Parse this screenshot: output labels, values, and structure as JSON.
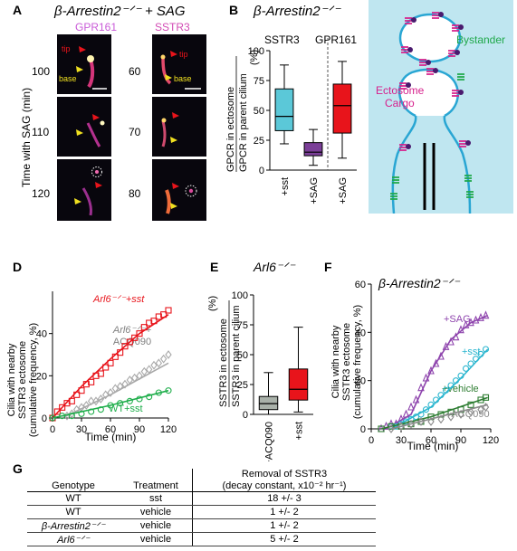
{
  "panels": {
    "A": {
      "label": "A",
      "title": "β-Arrestin2⁻ᐟ⁻ + SAG",
      "ylabel": "Time with SAG (min)",
      "col1_header": "GPR161",
      "col2_header": "SSTR3",
      "col1_times": [
        "100",
        "110",
        "120"
      ],
      "col2_times": [
        "60",
        "70",
        "80"
      ],
      "tip_label": "tip",
      "base_label": "base"
    },
    "B": {
      "label": "B",
      "title": "β-Arrestin2⁻ᐟ⁻",
      "group1": "SSTR3",
      "group2": "GPR161",
      "ylabel_num": "GPCR in ectosome",
      "ylabel_den": "GPCR in parent cilium",
      "ylabel_unit": "(%)"
    },
    "C": {
      "label": "C",
      "bystander": "Bystander",
      "cargo_line1": "Ectosome",
      "cargo_line2": "Cargo"
    },
    "D": {
      "label": "D",
      "ylabel1": "Cilia with nearby",
      "ylabel2": "SSTR3 ectosome",
      "ylabel3": "(cumulative frequency, %)",
      "xlabel": "Time (min)",
      "series_labels": [
        "Arl6⁻ᐟ⁻+sst",
        "Arl6⁻ᐟ⁻+",
        "ACQ090",
        "WT+sst"
      ]
    },
    "E": {
      "label": "E",
      "title": "Arl6⁻ᐟ⁻",
      "ylabel1": "SSTR3 in ectosome",
      "ylabel2": "SSTR3 in parent cilium",
      "ylabel_unit": "(%)"
    },
    "F": {
      "label": "F",
      "title": "β-Arrestin2⁻ᐟ⁻",
      "ylabel1": "Cilia with nearby",
      "ylabel2": "SSTR3 ectosome",
      "ylabel3": "(cumulative frequency, %)",
      "xlabel": "Time (min)",
      "series_labels": [
        "+SAG",
        "+sst",
        "+vehicle",
        "+ACQ090"
      ]
    },
    "G": {
      "label": "G",
      "headers": {
        "genotype": "Genotype",
        "treatment": "Treatment",
        "removal_line1": "Removal of SSTR3",
        "removal_line2": "(decay constant, x10⁻² hr⁻¹)"
      },
      "rows": [
        {
          "genotype": "WT",
          "treatment": "sst",
          "value": "18 +/- 3"
        },
        {
          "genotype": "WT",
          "treatment": "vehicle",
          "value": "1 +/- 2"
        },
        {
          "genotype": "β-Arrestin2⁻ᐟ⁻",
          "treatment": "vehicle",
          "value": "1 +/- 2"
        },
        {
          "genotype": "Arl6⁻ᐟ⁻",
          "treatment": "vehicle",
          "value": "5 +/- 2"
        }
      ]
    }
  },
  "colors": {
    "sstr3_box": "#5bc8d8",
    "sst_sag_box": "#7b3f98",
    "gpr161_box": "#e8141b",
    "arl6_sst": "#e8141b",
    "arl6_acq": "#a9a9a9",
    "wt_sst": "#1fae4b",
    "sag_purple": "#8e44ad",
    "sst_cyan": "#2bb6cf",
    "vehicle_green": "#2e7d32",
    "acq_grey": "#8a8a8a",
    "cell_bg": "#bfe6f0",
    "cilium_blue": "#29a6d3",
    "cargo_magenta": "#d6208c",
    "bystander_green": "#1fa84a",
    "tip_arrow": "#e8141b",
    "base_arrow": "#f0e020"
  },
  "chart_data": [
    {
      "panel": "B",
      "type": "box",
      "ylabel": "GPCR in ectosome / GPCR in parent cilium (%)",
      "ylim": [
        0,
        100
      ],
      "yticks": [
        0,
        25,
        50,
        75,
        100
      ],
      "categories": [
        "+sst",
        "+SAG",
        "+SAG"
      ],
      "groups": [
        "SSTR3",
        "SSTR3",
        "GPR161"
      ],
      "boxes": [
        {
          "min": 22,
          "q1": 33,
          "median": 45,
          "q3": 68,
          "max": 88
        },
        {
          "min": 4,
          "q1": 12,
          "median": 15,
          "q3": 23,
          "max": 34
        },
        {
          "min": 10,
          "q1": 31,
          "median": 54,
          "q3": 72,
          "max": 91
        }
      ]
    },
    {
      "panel": "D",
      "type": "line",
      "xlabel": "Time (min)",
      "ylabel": "Cilia with nearby SSTR3 ectosome (cumulative frequency, %)",
      "xlim": [
        0,
        120
      ],
      "ylim": [
        0,
        60
      ],
      "xticks": [
        0,
        30,
        60,
        90,
        120
      ],
      "yticks": [
        0,
        20,
        40
      ],
      "series": [
        {
          "name": "Arl6⁻ᐟ⁻+sst",
          "marker": "square",
          "x": [
            0,
            5,
            10,
            15,
            20,
            25,
            30,
            35,
            40,
            45,
            50,
            55,
            60,
            65,
            70,
            75,
            80,
            85,
            90,
            95,
            100,
            105,
            110,
            115,
            120
          ],
          "y": [
            0,
            3,
            5,
            7,
            8,
            11,
            13,
            16,
            17,
            20,
            21,
            24,
            26,
            29,
            31,
            34,
            36,
            38,
            40,
            43,
            45,
            46,
            48,
            49,
            51
          ],
          "fit": [
            [
              0,
              0
            ],
            [
              30,
              15
            ],
            [
              60,
              28
            ],
            [
              90,
              40
            ],
            [
              120,
              49
            ]
          ]
        },
        {
          "name": "Arl6⁻ᐟ⁻+ ACQ090",
          "marker": "diamond",
          "x": [
            15,
            20,
            25,
            30,
            35,
            40,
            45,
            50,
            55,
            60,
            65,
            70,
            75,
            80,
            85,
            90,
            95,
            100,
            105,
            110,
            115,
            120
          ],
          "y": [
            1,
            2,
            4,
            5,
            6,
            8,
            8,
            9,
            11,
            12,
            14,
            15,
            16,
            18,
            19,
            20,
            22,
            23,
            25,
            26,
            28,
            30
          ],
          "fit": [
            [
              10,
              0
            ],
            [
              60,
              11
            ],
            [
              120,
              26
            ]
          ]
        },
        {
          "name": "WT+sst",
          "marker": "circle",
          "x": [
            0,
            10,
            20,
            30,
            40,
            50,
            60,
            70,
            80,
            90,
            100,
            110,
            120
          ],
          "y": [
            0,
            1,
            1,
            2,
            3,
            4,
            6,
            7,
            8,
            9,
            10,
            12,
            13
          ],
          "fit": [
            [
              0,
              0
            ],
            [
              60,
              6
            ],
            [
              120,
              13
            ]
          ]
        }
      ]
    },
    {
      "panel": "E",
      "type": "box",
      "ylabel": "SSTR3 in ectosome / SSTR3 in parent cilium (%)",
      "ylim": [
        0,
        100
      ],
      "yticks": [
        0,
        25,
        50,
        75,
        100
      ],
      "categories": [
        "+ACQ090",
        "+sst"
      ],
      "boxes": [
        {
          "min": 0,
          "q1": 4,
          "median": 9,
          "q3": 15,
          "max": 35
        },
        {
          "min": 2,
          "q1": 12,
          "median": 21,
          "q3": 38,
          "max": 73
        }
      ]
    },
    {
      "panel": "F",
      "type": "line",
      "xlabel": "Time (min)",
      "ylabel": "Cilia with nearby SSTR3 ectosome (cumulative frequency, %)",
      "xlim": [
        0,
        120
      ],
      "ylim": [
        0,
        60
      ],
      "xticks": [
        0,
        30,
        60,
        90,
        120
      ],
      "yticks": [
        0,
        20,
        40,
        60
      ],
      "series": [
        {
          "name": "+SAG",
          "marker": "triangle",
          "x": [
            10,
            15,
            20,
            25,
            30,
            35,
            40,
            45,
            50,
            55,
            60,
            65,
            70,
            75,
            80,
            85,
            90,
            95,
            100,
            105,
            110,
            115
          ],
          "y": [
            0,
            1,
            2,
            2,
            4,
            6,
            9,
            12,
            17,
            21,
            24,
            27,
            30,
            34,
            36,
            38,
            41,
            43,
            44,
            45,
            46,
            47
          ],
          "fit": [
            [
              15,
              0
            ],
            [
              40,
              6
            ],
            [
              60,
              24
            ],
            [
              80,
              37
            ],
            [
              100,
              44
            ],
            [
              117,
              47
            ]
          ]
        },
        {
          "name": "+sst",
          "marker": "circle",
          "x": [
            20,
            25,
            30,
            35,
            40,
            45,
            50,
            55,
            60,
            65,
            70,
            75,
            80,
            85,
            90,
            95,
            100,
            105,
            110,
            115
          ],
          "y": [
            1,
            1,
            2,
            3,
            4,
            5,
            6,
            8,
            10,
            12,
            14,
            16,
            18,
            20,
            22,
            25,
            27,
            29,
            31,
            33
          ],
          "fit": [
            [
              20,
              0
            ],
            [
              60,
              9
            ],
            [
              90,
              21
            ],
            [
              117,
              33
            ]
          ]
        },
        {
          "name": "+vehicle",
          "marker": "square",
          "x": [
            10,
            20,
            30,
            40,
            50,
            60,
            70,
            80,
            90,
            100,
            110,
            115
          ],
          "y": [
            0,
            1,
            1,
            2,
            3,
            5,
            6,
            7,
            8,
            10,
            12,
            13
          ],
          "fit": [
            [
              10,
              0
            ],
            [
              60,
              5
            ],
            [
              117,
              13
            ]
          ]
        },
        {
          "name": "+ACQ090",
          "marker": "diamond",
          "x": [
            20,
            30,
            40,
            50,
            60,
            70,
            80,
            90,
            100,
            110,
            115
          ],
          "y": [
            0,
            1,
            2,
            3,
            3,
            4,
            5,
            6,
            7,
            8,
            9
          ],
          "fit": [
            [
              20,
              0
            ],
            [
              117,
              10
            ]
          ]
        }
      ]
    }
  ]
}
